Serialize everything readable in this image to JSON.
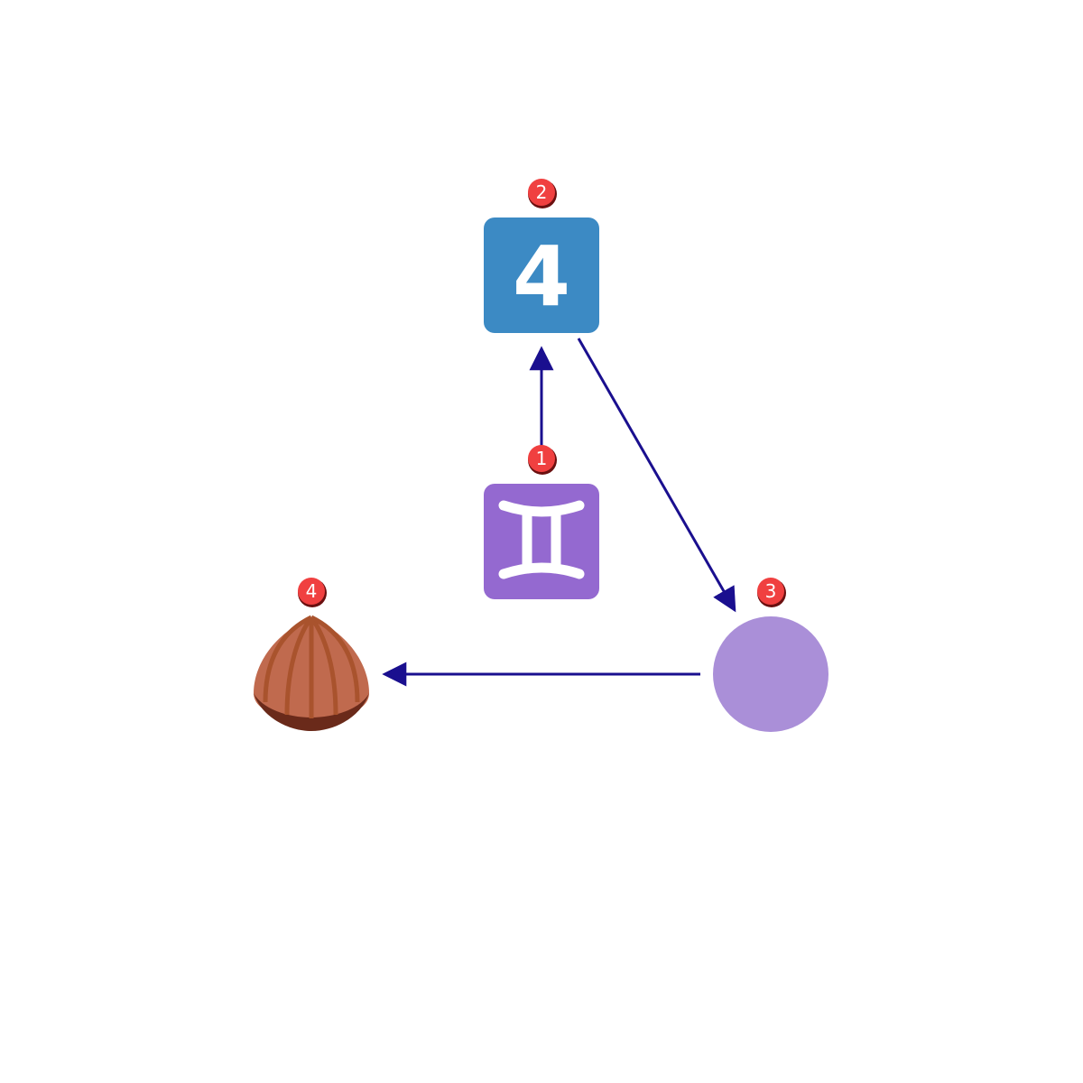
{
  "colors": {
    "arrow": "#1a0f8f",
    "badge_fill": "#f04040",
    "badge_stroke": "#6b1010",
    "tile_digit": "#3c8ac4",
    "tile_gemini": "#9469d0",
    "circle": "#aa8fd8",
    "chestnut_body": "#c06a4e",
    "chestnut_base": "#6a2a1a",
    "chestnut_rib": "#a9532d"
  },
  "nodes": [
    {
      "id": "1",
      "badge": "1",
      "icon": "gemini-icon"
    },
    {
      "id": "2",
      "badge": "2",
      "icon": "keycap-digit-four-icon",
      "glyph": "4"
    },
    {
      "id": "3",
      "badge": "3",
      "icon": "purple-circle-icon"
    },
    {
      "id": "4",
      "badge": "4",
      "icon": "chestnut-icon"
    }
  ],
  "edges": [
    {
      "from": "1",
      "to": "2"
    },
    {
      "from": "2",
      "to": "3"
    },
    {
      "from": "3",
      "to": "4"
    }
  ]
}
